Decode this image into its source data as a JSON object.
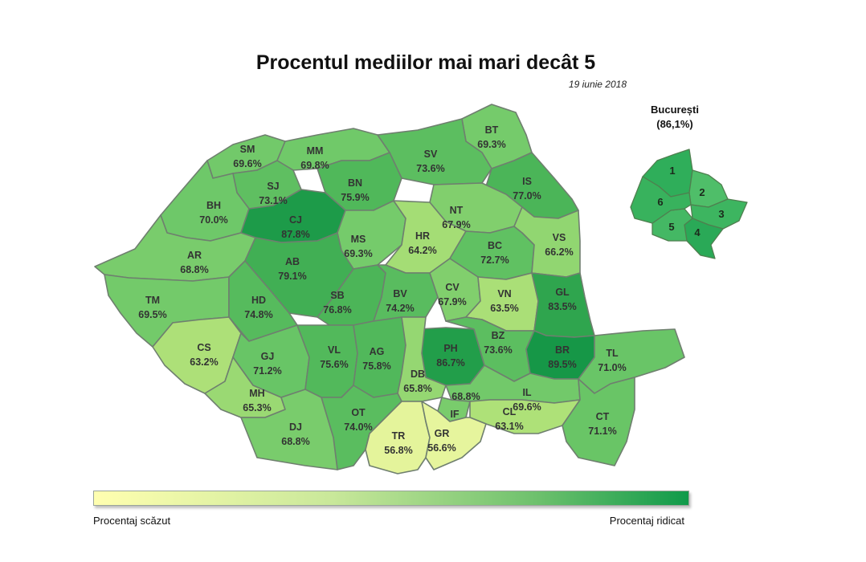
{
  "title": "Procentul mediilor mai mari decât 5",
  "date": "19 iunie 2018",
  "bucharest": {
    "name": "București",
    "value": "(86,1%)",
    "sectors": [
      "1",
      "2",
      "3",
      "4",
      "5",
      "6"
    ]
  },
  "legend": {
    "low_label": "Procentaj scăzut",
    "high_label": "Procentaj ridicat",
    "low_color": "#ffffb0",
    "high_color": "#0f9a4a"
  },
  "counties": [
    {
      "code": "SM",
      "value": "69.6%",
      "pct": 69.6
    },
    {
      "code": "MM",
      "value": "69.8%",
      "pct": 69.8
    },
    {
      "code": "BT",
      "value": "69.3%",
      "pct": 69.3
    },
    {
      "code": "SV",
      "value": "73.6%",
      "pct": 73.6
    },
    {
      "code": "SJ",
      "value": "73.1%",
      "pct": 73.1
    },
    {
      "code": "BN",
      "value": "75.9%",
      "pct": 75.9
    },
    {
      "code": "IS",
      "value": "77.0%",
      "pct": 77.0
    },
    {
      "code": "BH",
      "value": "70.0%",
      "pct": 70.0
    },
    {
      "code": "CJ",
      "value": "87.8%",
      "pct": 87.8
    },
    {
      "code": "NT",
      "value": "67.9%",
      "pct": 67.9
    },
    {
      "code": "MS",
      "value": "69.3%",
      "pct": 69.3
    },
    {
      "code": "HR",
      "value": "64.2%",
      "pct": 64.2
    },
    {
      "code": "BC",
      "value": "72.7%",
      "pct": 72.7
    },
    {
      "code": "VS",
      "value": "66.2%",
      "pct": 66.2
    },
    {
      "code": "AR",
      "value": "68.8%",
      "pct": 68.8
    },
    {
      "code": "AB",
      "value": "79.1%",
      "pct": 79.1
    },
    {
      "code": "TM",
      "value": "69.5%",
      "pct": 69.5
    },
    {
      "code": "HD",
      "value": "74.8%",
      "pct": 74.8
    },
    {
      "code": "SB",
      "value": "76.8%",
      "pct": 76.8
    },
    {
      "code": "BV",
      "value": "74.2%",
      "pct": 74.2
    },
    {
      "code": "CV",
      "value": "67.9%",
      "pct": 67.9
    },
    {
      "code": "VN",
      "value": "63.5%",
      "pct": 63.5
    },
    {
      "code": "GL",
      "value": "83.5%",
      "pct": 83.5
    },
    {
      "code": "CS",
      "value": "63.2%",
      "pct": 63.2
    },
    {
      "code": "GJ",
      "value": "71.2%",
      "pct": 71.2
    },
    {
      "code": "VL",
      "value": "75.6%",
      "pct": 75.6
    },
    {
      "code": "AG",
      "value": "75.8%",
      "pct": 75.8
    },
    {
      "code": "PH",
      "value": "86.7%",
      "pct": 86.7
    },
    {
      "code": "BZ",
      "value": "73.6%",
      "pct": 73.6
    },
    {
      "code": "BR",
      "value": "89.5%",
      "pct": 89.5
    },
    {
      "code": "TL",
      "value": "71.0%",
      "pct": 71.0
    },
    {
      "code": "DB",
      "value": "65.8%",
      "pct": 65.8
    },
    {
      "code": "MH",
      "value": "65.3%",
      "pct": 65.3
    },
    {
      "code": "IL",
      "value": "69.6%",
      "pct": 69.6
    },
    {
      "code": "IF",
      "value": "68.8%",
      "pct": 68.8
    },
    {
      "code": "OT",
      "value": "74.0%",
      "pct": 74.0
    },
    {
      "code": "DJ",
      "value": "68.8%",
      "pct": 68.8
    },
    {
      "code": "CL",
      "value": "63.1%",
      "pct": 63.1
    },
    {
      "code": "CT",
      "value": "71.1%",
      "pct": 71.1
    },
    {
      "code": "TR",
      "value": "56.8%",
      "pct": 56.8
    },
    {
      "code": "GR",
      "value": "56.6%",
      "pct": 56.6
    }
  ]
}
